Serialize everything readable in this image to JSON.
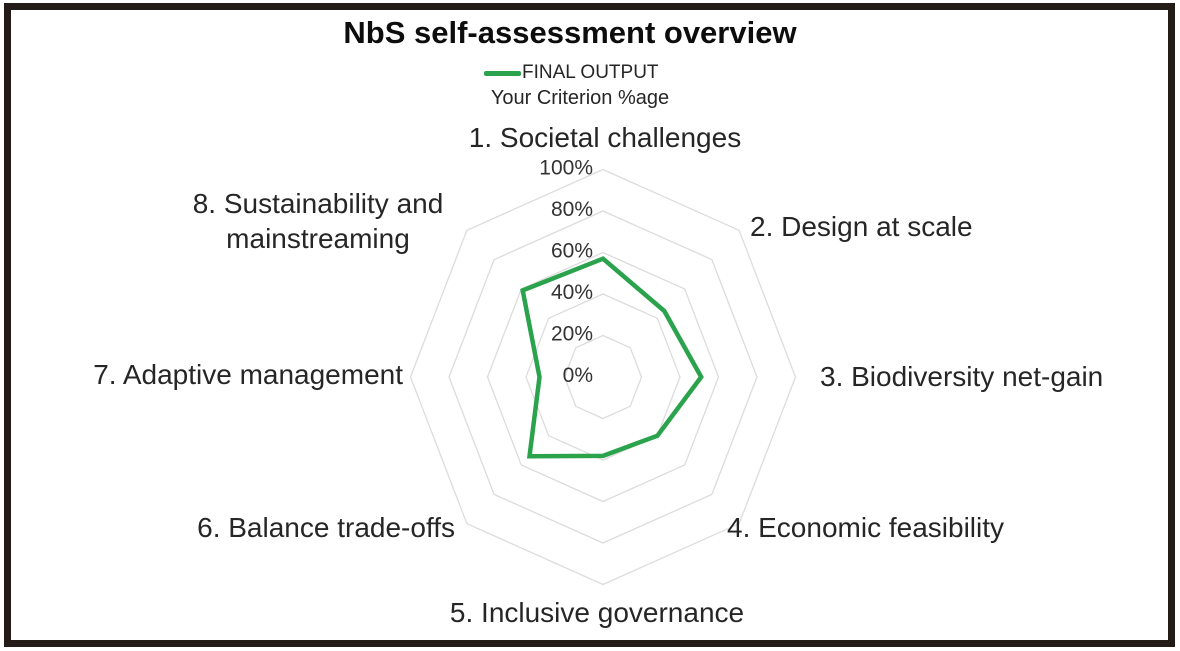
{
  "title": "NbS self-assessment overview",
  "legend": {
    "series_label": "FINAL OUTPUT",
    "sublabel": "Your Criterion %age"
  },
  "chart_data": {
    "type": "radar",
    "title": "NbS self-assessment overview",
    "categories": [
      "1. Societal challenges",
      "2. Design at scale",
      "3. Biodiversity net-gain",
      "4. Economic feasibility",
      "5. Inclusive governance",
      "6. Balance trade-offs",
      "7. Adaptive management",
      "8. Sustainability and mainstreaming"
    ],
    "series": [
      {
        "name": "FINAL OUTPUT",
        "values": [
          57,
          45,
          51,
          40,
          38,
          54,
          33,
          59
        ]
      }
    ],
    "axis": {
      "min": 0,
      "max": 100,
      "step": 20,
      "tick_labels": [
        "0%",
        "20%",
        "40%",
        "60%",
        "80%",
        "100%"
      ]
    },
    "layout": {
      "grid": "on",
      "grid_shape": "octagon",
      "legend_position": "top-center",
      "fill": "none"
    },
    "colors": {
      "line": "#2aa34c",
      "grid": "#dcdcdc",
      "text": "#262626",
      "border": "#221b17"
    }
  }
}
